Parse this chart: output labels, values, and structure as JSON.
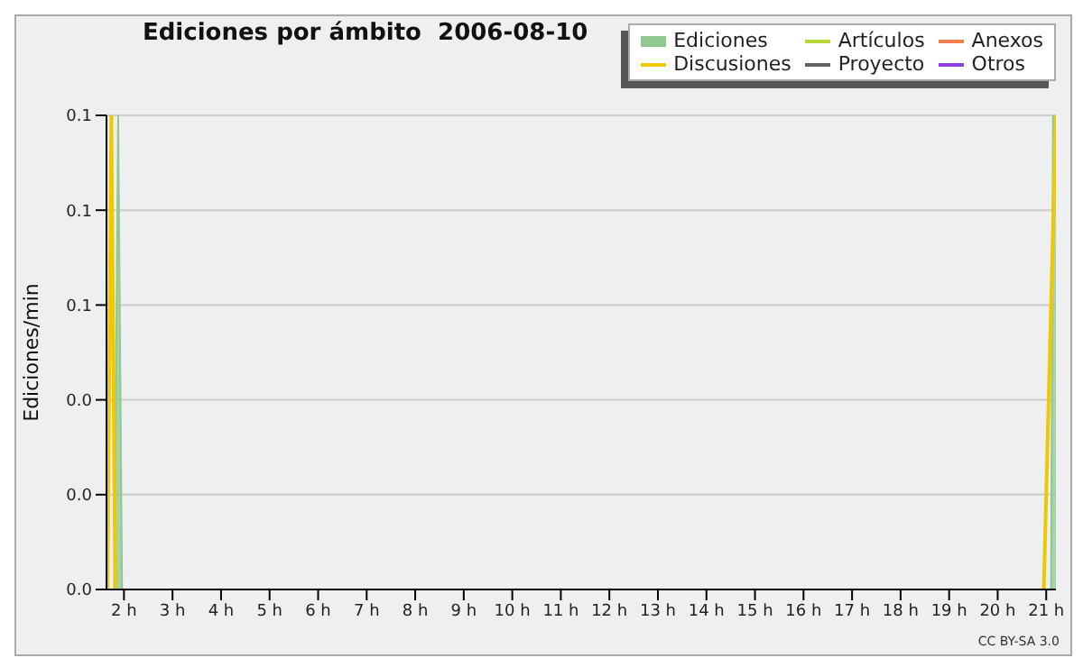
{
  "chart_data": {
    "type": "area",
    "title": "Ediciones por ámbito  2006-08-10",
    "ylabel": "Ediciones/min",
    "series": [
      {
        "name": "Ediciones",
        "color": "#90c890",
        "x": [
          1.8,
          1.88,
          1.96,
          11,
          21.1,
          21.14,
          21.2
        ],
        "values": [
          0,
          0.1,
          0,
          null,
          0,
          0.1,
          0.1
        ]
      },
      {
        "name": "Discusiones",
        "type": "line",
        "color": "#f0c800",
        "x": [
          1.66,
          1.74,
          1.82,
          11,
          20.95,
          21.2
        ],
        "values": [
          0,
          0.1,
          0,
          null,
          0,
          0.1
        ]
      },
      {
        "name": "Artículos",
        "type": "line",
        "color": "#b8d838"
      },
      {
        "name": "Proyecto",
        "type": "line",
        "color": "#606060"
      },
      {
        "name": "Anexos",
        "type": "line",
        "color": "#f08050"
      },
      {
        "name": "Otros",
        "type": "line",
        "color": "#9040e0"
      }
    ],
    "xlim": [
      1.64,
      21.2
    ],
    "xticks": [
      {
        "value": 2,
        "label": "2 h"
      },
      {
        "value": 3,
        "label": "3 h"
      },
      {
        "value": 4,
        "label": "4 h"
      },
      {
        "value": 5,
        "label": "5 h"
      },
      {
        "value": 6,
        "label": "6 h"
      },
      {
        "value": 7,
        "label": "7 h"
      },
      {
        "value": 8,
        "label": "8 h"
      },
      {
        "value": 9,
        "label": "9 h"
      },
      {
        "value": 10,
        "label": "10 h"
      },
      {
        "value": 11,
        "label": "11 h"
      },
      {
        "value": 12,
        "label": "12 h"
      },
      {
        "value": 13,
        "label": "13 h"
      },
      {
        "value": 14,
        "label": "14 h"
      },
      {
        "value": 15,
        "label": "15 h"
      },
      {
        "value": 16,
        "label": "16 h"
      },
      {
        "value": 17,
        "label": "17 h"
      },
      {
        "value": 18,
        "label": "18 h"
      },
      {
        "value": 19,
        "label": "19 h"
      },
      {
        "value": 20,
        "label": "20 h"
      },
      {
        "value": 21,
        "label": "21 h"
      }
    ],
    "ylim": [
      0,
      0.1
    ],
    "yticks": [
      {
        "value": 0,
        "label": "0.0"
      },
      {
        "value": 0.02,
        "label": "0.0"
      },
      {
        "value": 0.04,
        "label": "0.0"
      },
      {
        "value": 0.06,
        "label": "0.1"
      },
      {
        "value": 0.08,
        "label": "0.1"
      },
      {
        "value": 0.1,
        "label": "0.1"
      }
    ],
    "grid": "y",
    "legend": "top right",
    "marker": "none",
    "annotations": [
      "CC BY-SA 3.0"
    ]
  }
}
